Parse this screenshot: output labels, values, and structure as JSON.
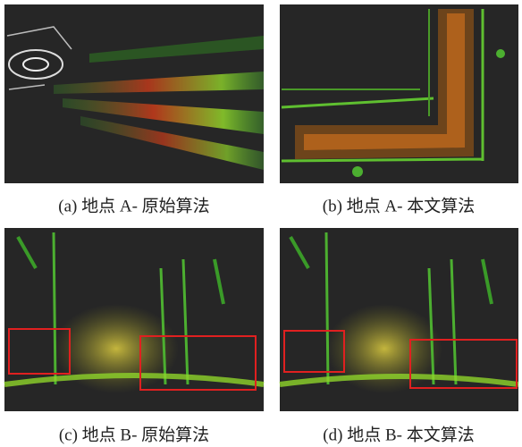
{
  "panels": [
    {
      "caption": "(a) 地点 A- 原始算法"
    },
    {
      "caption": "(b) 地点 A- 本文算法"
    },
    {
      "caption": "(c) 地点 B- 原始算法"
    },
    {
      "caption": "(d) 地点 B- 本文算法"
    }
  ]
}
